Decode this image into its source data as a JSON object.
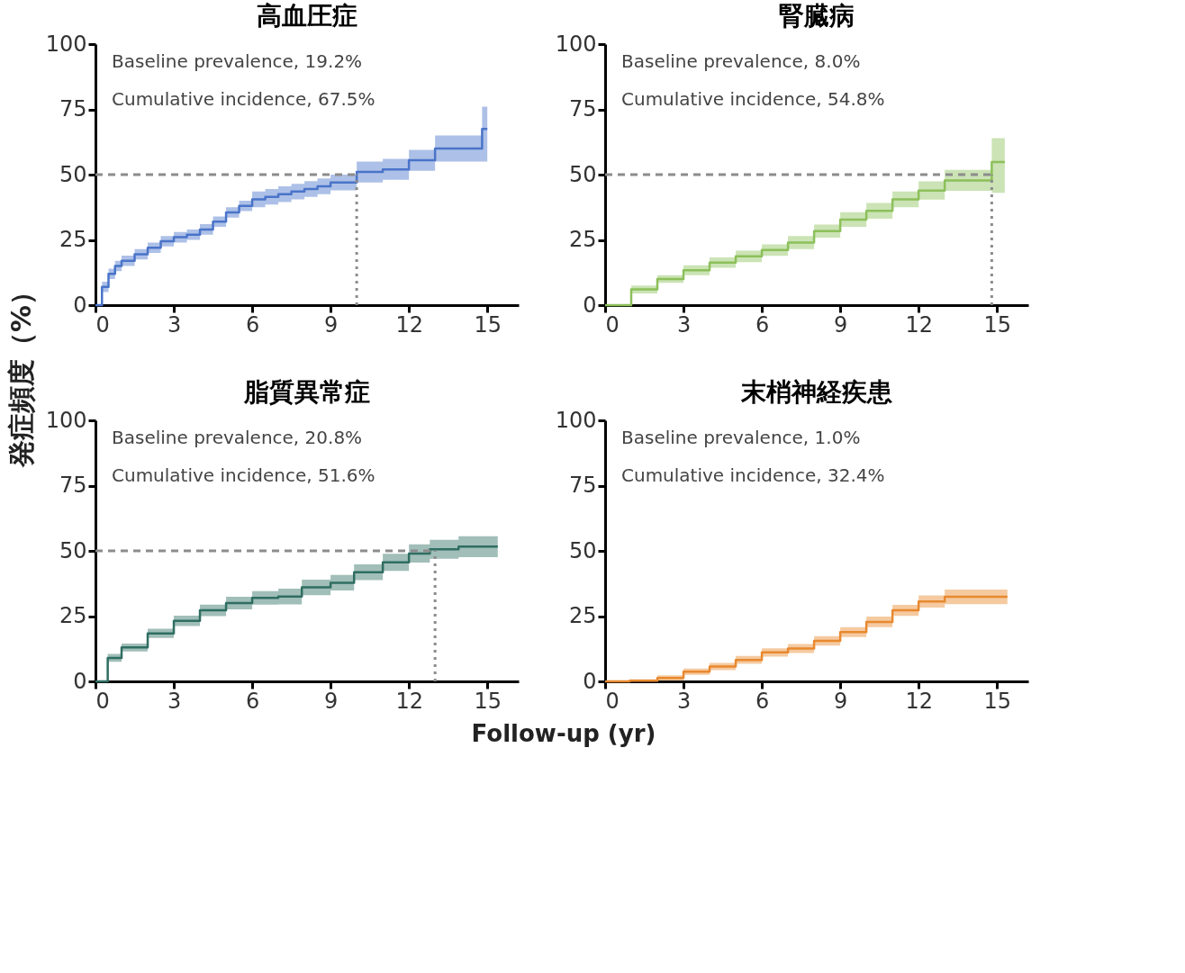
{
  "chart_data": [
    {
      "type": "step",
      "title": "高血圧症",
      "ylabel": "発症頻度（%）",
      "xlim": [
        0,
        16.2
      ],
      "xticks": [
        0,
        3,
        6,
        9,
        12,
        15
      ],
      "ylim": [
        0,
        100
      ],
      "yticks": [
        0,
        25,
        50,
        75,
        100
      ],
      "grid": false,
      "annotations": [
        "Baseline prevalence, 19.2%",
        "Cumulative incidence, 67.5%"
      ],
      "ref_lines": [
        {
          "axis": "y",
          "value": 50,
          "line_style": "dashed",
          "color": "#8c8c8c"
        },
        {
          "axis": "x",
          "value": 10,
          "line_style": "dotted",
          "color": "#8c8c8c"
        }
      ],
      "series": [
        {
          "color": "#4a74c9",
          "x": [
            0,
            0.25,
            0.5,
            0.75,
            1,
            1.5,
            2,
            2.5,
            3,
            3.5,
            4,
            4.5,
            5,
            5.5,
            6,
            6.5,
            7,
            7.5,
            8,
            8.5,
            9,
            10,
            11,
            12,
            13,
            14.8,
            15
          ],
          "values": [
            0,
            7,
            12,
            15,
            17,
            19.5,
            22,
            24.5,
            26,
            27,
            29,
            32,
            35.5,
            38,
            40.5,
            41.5,
            42.5,
            43.5,
            44.5,
            45.5,
            47,
            51,
            52,
            55.5,
            60,
            67.5,
            67.5
          ],
          "lower": [
            0,
            5,
            10,
            13,
            15,
            17.5,
            20,
            22.5,
            24,
            25,
            27,
            30,
            33.5,
            36,
            37.5,
            38.5,
            39.5,
            40.5,
            41.5,
            42.5,
            44,
            47,
            48,
            51.5,
            55,
            55,
            55
          ],
          "upper": [
            0,
            9,
            14,
            17,
            19,
            21.5,
            24,
            26.5,
            28,
            29,
            31,
            34,
            37.5,
            40,
            43.5,
            44.5,
            45.5,
            46.5,
            47.5,
            48.5,
            50,
            55,
            56,
            59.5,
            65,
            76,
            76
          ]
        }
      ]
    },
    {
      "type": "step",
      "title": "腎臓病",
      "xlim": [
        0,
        16.2
      ],
      "xticks": [
        0,
        3,
        6,
        9,
        12,
        15
      ],
      "ylim": [
        0,
        100
      ],
      "yticks": [
        0,
        25,
        50,
        75,
        100
      ],
      "grid": false,
      "annotations": [
        "Baseline prevalence, 8.0%",
        "Cumulative incidence, 54.8%"
      ],
      "ref_lines": [
        {
          "axis": "y",
          "value": 50,
          "line_style": "dashed",
          "color": "#8c8c8c"
        },
        {
          "axis": "x",
          "value": 14.8,
          "line_style": "dotted",
          "color": "#8c8c8c"
        }
      ],
      "series": [
        {
          "color": "#8cc05a",
          "x": [
            0,
            1,
            2,
            3,
            4,
            5,
            6,
            7,
            8,
            9,
            10,
            11,
            12,
            13,
            14.8,
            15.3
          ],
          "values": [
            0,
            6,
            10,
            13.4,
            16.3,
            18.7,
            21.1,
            24,
            28.4,
            32.8,
            36.1,
            40.5,
            43.9,
            47.8,
            54.8,
            54.8
          ],
          "lower": [
            0,
            4.5,
            8.5,
            11.5,
            14.3,
            16.5,
            18.9,
            21.5,
            25.9,
            30,
            33.1,
            37.5,
            40.4,
            43.8,
            43,
            43
          ],
          "upper": [
            0,
            7.5,
            11.5,
            15.3,
            18.3,
            20.9,
            23.3,
            26.5,
            30.9,
            35.6,
            39.1,
            43.5,
            47.4,
            51.8,
            64,
            64
          ]
        }
      ]
    },
    {
      "type": "step",
      "title": "脂質異常症",
      "xlabel": "Follow-up (yr)",
      "xlim": [
        0,
        16.2
      ],
      "xticks": [
        0,
        3,
        6,
        9,
        12,
        15
      ],
      "ylim": [
        0,
        100
      ],
      "yticks": [
        0,
        25,
        50,
        75,
        100
      ],
      "grid": false,
      "annotations": [
        "Baseline prevalence, 20.8%",
        "Cumulative incidence, 51.6%"
      ],
      "ref_lines": [
        {
          "axis": "y",
          "value": 50,
          "line_style": "dashed",
          "color": "#8c8c8c"
        },
        {
          "axis": "x",
          "value": 13,
          "line_style": "dotted",
          "color": "#8c8c8c"
        }
      ],
      "series": [
        {
          "color": "#2f6e62",
          "x": [
            0,
            0.47,
            1,
            2,
            3,
            4,
            5,
            6,
            7,
            7.9,
            9,
            9.9,
            11,
            12,
            12.8,
            13.9,
            15.4
          ],
          "values": [
            0,
            9,
            13,
            18.4,
            23.2,
            27.2,
            30,
            32,
            32.5,
            36,
            37.8,
            41.8,
            45.6,
            49,
            50.6,
            51.6,
            51.6
          ],
          "lower": [
            0,
            7.5,
            11.5,
            16.6,
            21.2,
            25,
            27.6,
            29.4,
            29.5,
            33,
            34.8,
            38.8,
            42.3,
            45.5,
            47,
            47.6,
            47.6
          ],
          "upper": [
            0,
            10.5,
            14.5,
            20.2,
            25.2,
            29.4,
            32.4,
            34.6,
            35.5,
            39,
            40.8,
            44.8,
            48.9,
            52.5,
            54.2,
            55.6,
            55.6
          ]
        }
      ]
    },
    {
      "type": "step",
      "title": "末梢神経疾患",
      "xlim": [
        0,
        16.2
      ],
      "xticks": [
        0,
        3,
        6,
        9,
        12,
        15
      ],
      "ylim": [
        0,
        100
      ],
      "yticks": [
        0,
        25,
        50,
        75,
        100
      ],
      "grid": false,
      "annotations": [
        "Baseline prevalence, 1.0%",
        "Cumulative incidence, 32.4%"
      ],
      "series": [
        {
          "color": "#e8892f",
          "x": [
            0,
            0.94,
            2,
            3,
            4,
            5,
            6,
            7,
            8,
            9,
            10,
            11,
            12,
            13,
            15.4
          ],
          "values": [
            0,
            0.3,
            1.3,
            3.7,
            5.7,
            8.2,
            11.1,
            12.6,
            15.5,
            18.9,
            22.8,
            27.2,
            30.6,
            32.4,
            32.4
          ],
          "lower": [
            0,
            0,
            0.3,
            2.5,
            4.3,
            6.7,
            9.5,
            10.9,
            13.7,
            17,
            20.8,
            25.1,
            28.3,
            29.6,
            29.6
          ],
          "upper": [
            0,
            0.8,
            2.3,
            4.9,
            7.1,
            9.7,
            12.7,
            14.3,
            17.3,
            20.8,
            24.8,
            29.3,
            32.9,
            35.2,
            35.2
          ]
        }
      ]
    }
  ]
}
